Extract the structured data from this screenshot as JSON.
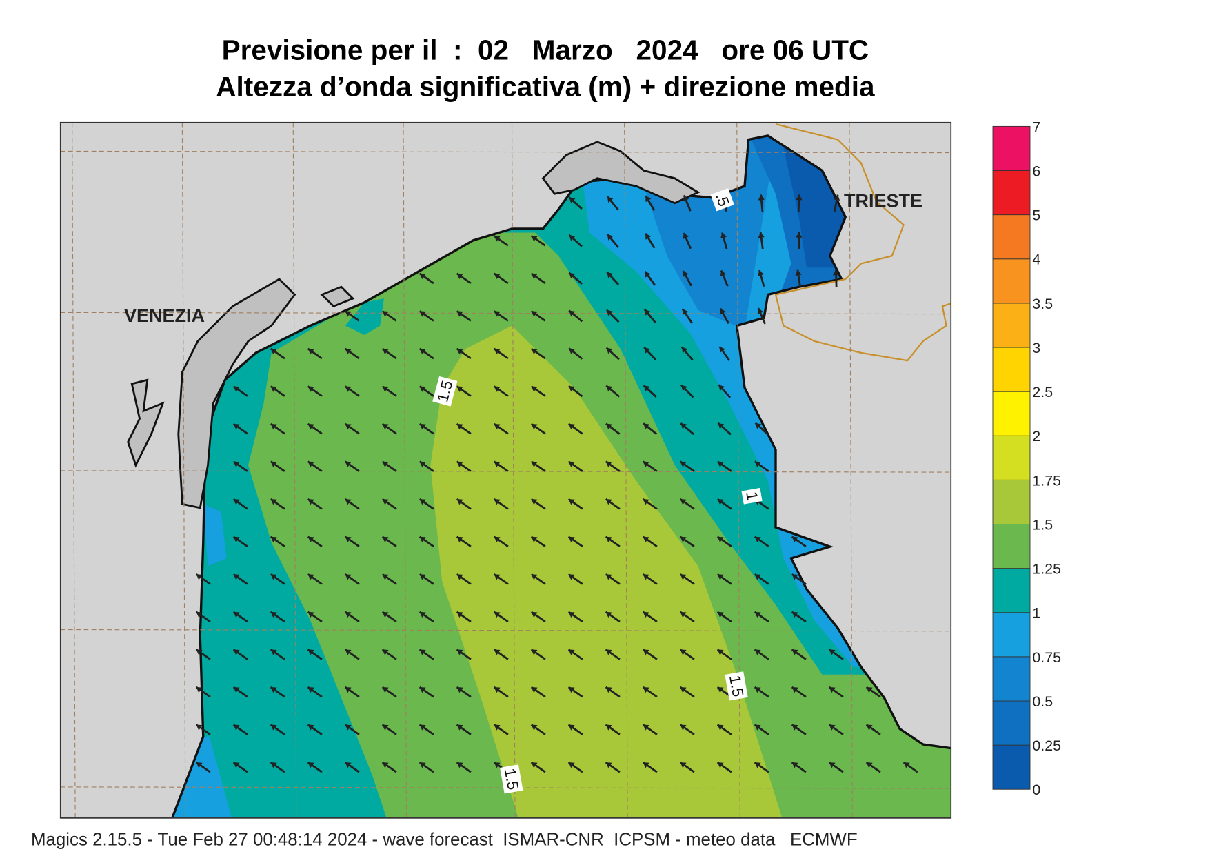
{
  "header": {
    "title": "Previsione per il  :  02   Marzo   2024   ore 06 UTC",
    "subtitle": "Altezza d’onda significativa (m) + direzione media"
  },
  "map": {
    "places": [
      "VENEZIA",
      "TRIESTE"
    ],
    "contour_labels": [
      "1.5",
      "1",
      ".5",
      "1.5",
      "1.5"
    ]
  },
  "colorbar": {
    "levels": [
      0,
      0.25,
      0.5,
      0.75,
      1,
      1.25,
      1.5,
      1.75,
      2,
      2.5,
      3,
      3.5,
      4,
      5,
      6,
      7
    ],
    "colors": [
      "#0a5aad",
      "#0f6fc0",
      "#1385d0",
      "#16a0e0",
      "#00aaa0",
      "#6ab84e",
      "#a8c83a",
      "#d3df20",
      "#fff200",
      "#ffd400",
      "#fbb016",
      "#f7931e",
      "#f47920",
      "#ed1c24",
      "#ec1163"
    ]
  },
  "footer": "Magics 2.15.5 - Tue Feb 27 00:48:14 2024 - wave forecast  ISMAR-CNR  ICPSM - meteo data   ECMWF"
}
